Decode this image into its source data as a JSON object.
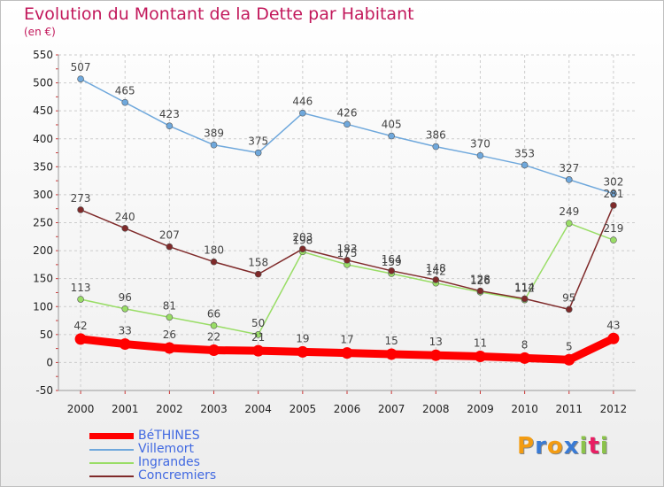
{
  "chart_data": {
    "type": "line",
    "title": "Evolution du Montant de la Dette par Habitant",
    "subtitle": "(en €)",
    "categories": [
      "2000",
      "2001",
      "2002",
      "2003",
      "2004",
      "2005",
      "2006",
      "2007",
      "2008",
      "2009",
      "2010",
      "2011",
      "2012"
    ],
    "ylim": [
      -50,
      550
    ],
    "yticks": [
      -50,
      0,
      50,
      100,
      150,
      200,
      250,
      300,
      350,
      400,
      450,
      500,
      550
    ],
    "grid": true,
    "legend_position": "bottom-left",
    "series": [
      {
        "name": "BéTHINES",
        "color": "#ff0000",
        "values": [
          42,
          33,
          26,
          22,
          21,
          19,
          17,
          15,
          13,
          11,
          8,
          5,
          43
        ]
      },
      {
        "name": "Villemort",
        "color": "#6fa8dc",
        "values": [
          507,
          465,
          423,
          389,
          375,
          446,
          426,
          405,
          386,
          370,
          353,
          327,
          302
        ]
      },
      {
        "name": "Ingrandes",
        "color": "#99dd66",
        "values": [
          113,
          96,
          81,
          66,
          50,
          198,
          175,
          159,
          142,
          126,
          112,
          249,
          219
        ]
      },
      {
        "name": "Concremiers",
        "color": "#7f2a2a",
        "values": [
          273,
          240,
          207,
          180,
          158,
          203,
          183,
          164,
          148,
          128,
          114,
          95,
          281
        ]
      }
    ]
  },
  "logo": {
    "text": "Proxiti",
    "letters": [
      "P",
      "r",
      "o",
      "x",
      "i",
      "t",
      "i"
    ],
    "colors": [
      "#f39c12",
      "#3a7bd5",
      "#f39c12",
      "#3a7bd5",
      "#8bc34a",
      "#e91e63",
      "#8bc34a"
    ]
  }
}
